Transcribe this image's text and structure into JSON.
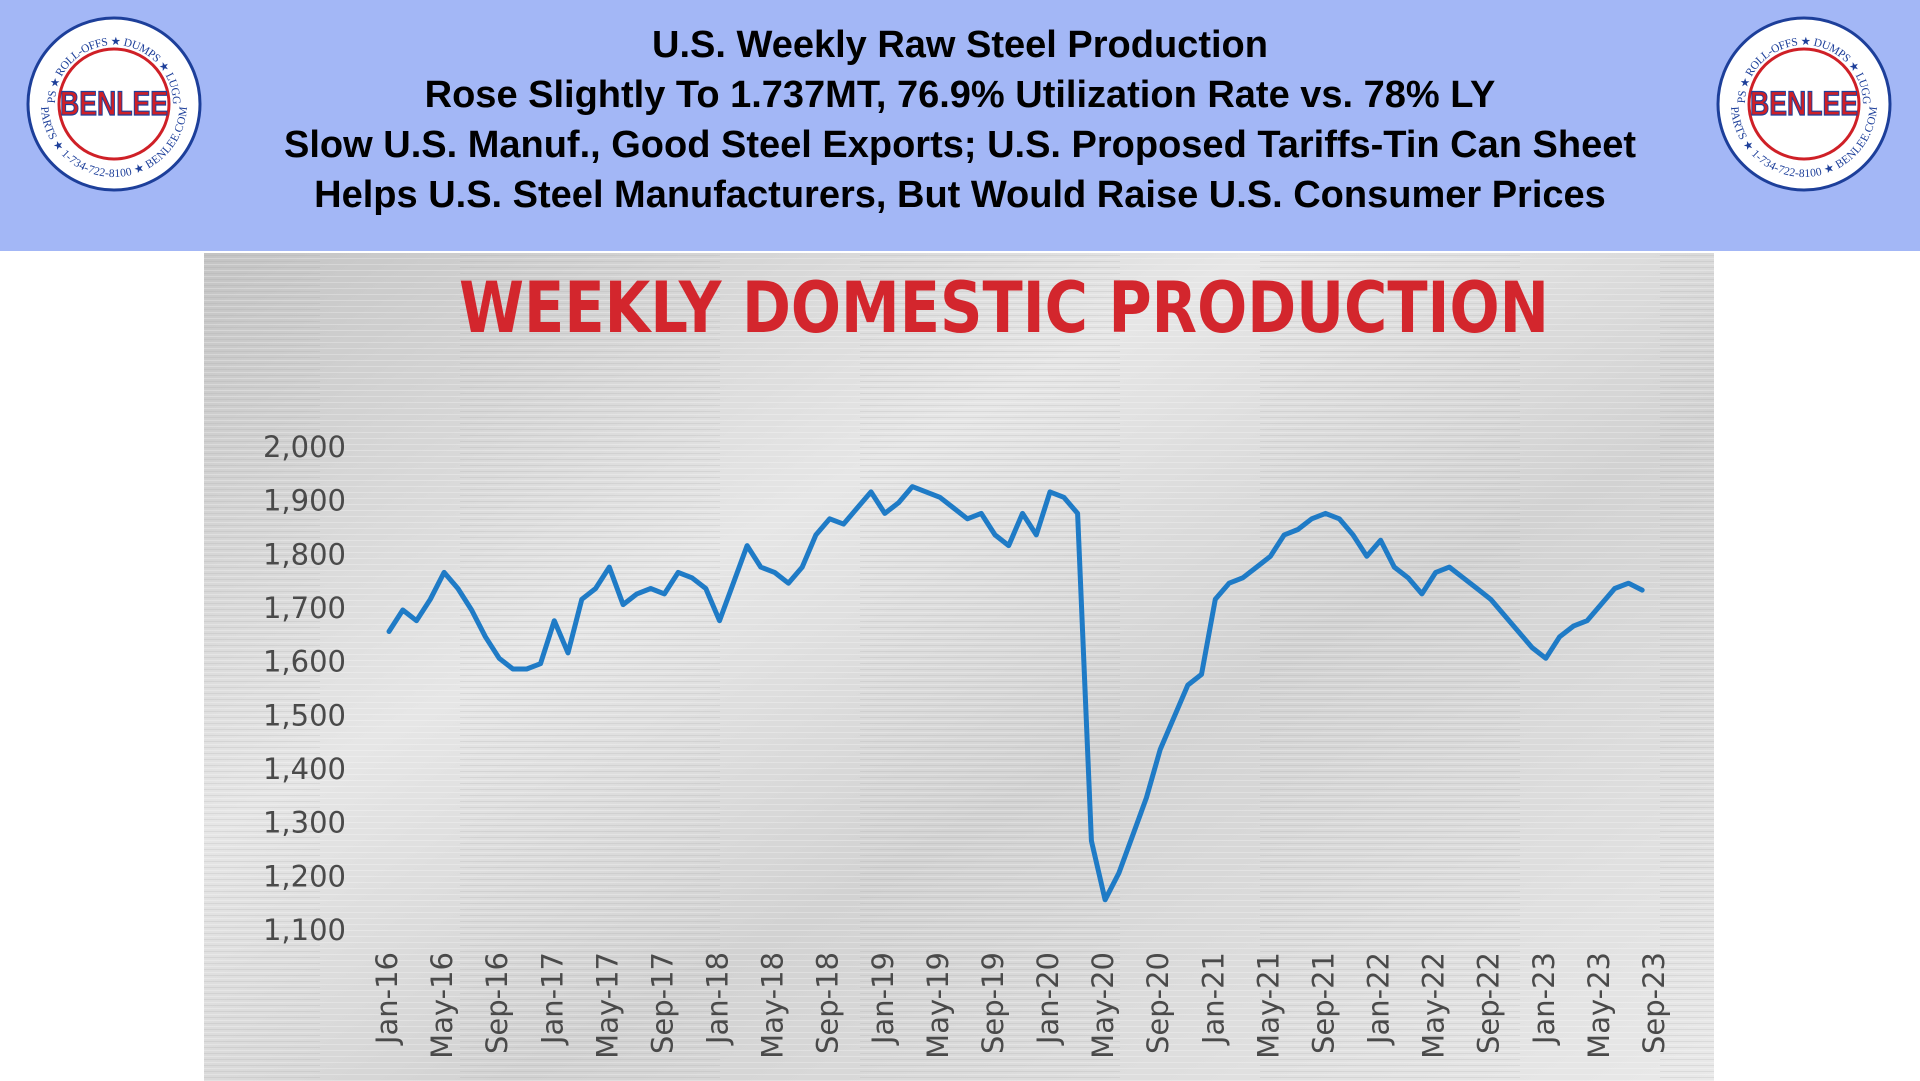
{
  "header": {
    "lines": [
      "U.S. Weekly Raw Steel Production",
      "Rose Slightly To 1.737MT, 76.9% Utilization Rate vs. 78% LY",
      "Slow U.S. Manuf., Good Steel Exports; U.S. Proposed Tariffs-Tin Can Sheet",
      "Helps U.S. Steel Manufacturers, But Would Raise U.S. Consumer Prices"
    ],
    "logo": {
      "name": "BENLEE",
      "ring_top": "TARPS ★ ROLL-OFFS ★ DUMPS ★ LUGGERS",
      "ring_bottom": "PARTS ★ 1-734-722-8100 ★ BENLEE.COM"
    }
  },
  "chart_data": {
    "type": "line",
    "title": "WEEKLY DOMESTIC PRODUCTION",
    "color": "#1f7bc6",
    "categories": [
      "Jan-16",
      null,
      null,
      null,
      "May-16",
      null,
      null,
      null,
      "Sep-16",
      null,
      null,
      null,
      "Jan-17",
      null,
      null,
      null,
      "May-17",
      null,
      null,
      null,
      "Sep-17",
      null,
      null,
      null,
      "Jan-18",
      null,
      null,
      null,
      "May-18",
      null,
      null,
      null,
      "Sep-18",
      null,
      null,
      null,
      "Jan-19",
      null,
      null,
      null,
      "May-19",
      null,
      null,
      null,
      "Sep-19",
      null,
      null,
      null,
      "Jan-20",
      null,
      null,
      null,
      "May-20",
      null,
      null,
      null,
      "Sep-20",
      null,
      null,
      null,
      "Jan-21",
      null,
      null,
      null,
      "May-21",
      null,
      null,
      null,
      "Sep-21",
      null,
      null,
      null,
      "Jan-22",
      null,
      null,
      null,
      "May-22",
      null,
      null,
      null,
      "Sep-22",
      null,
      null,
      null,
      "Jan-23",
      null,
      null,
      null,
      "May-23",
      null,
      null,
      null,
      "Sep-23"
    ],
    "values": [
      1660,
      1700,
      1680,
      1720,
      1770,
      1740,
      1700,
      1650,
      1610,
      1590,
      1590,
      1600,
      1680,
      1620,
      1720,
      1740,
      1780,
      1710,
      1730,
      1740,
      1730,
      1770,
      1760,
      1740,
      1680,
      1750,
      1820,
      1780,
      1770,
      1750,
      1780,
      1840,
      1870,
      1860,
      1890,
      1920,
      1880,
      1900,
      1930,
      1920,
      1910,
      1890,
      1870,
      1880,
      1840,
      1820,
      1880,
      1840,
      1920,
      1910,
      1880,
      1270,
      1160,
      1210,
      1280,
      1350,
      1440,
      1500,
      1560,
      1580,
      1720,
      1750,
      1760,
      1780,
      1800,
      1840,
      1850,
      1870,
      1880,
      1870,
      1840,
      1800,
      1830,
      1780,
      1760,
      1730,
      1770,
      1780,
      1760,
      1740,
      1720,
      1690,
      1660,
      1630,
      1610,
      1650,
      1670,
      1680,
      1710,
      1740,
      1750,
      1737,
      null
    ],
    "ylim": [
      1100,
      2000
    ],
    "yticks": [
      {
        "value": 1100,
        "label": "1,100"
      },
      {
        "value": 1200,
        "label": "1,200"
      },
      {
        "value": 1300,
        "label": "1,300"
      },
      {
        "value": 1400,
        "label": "1,400"
      },
      {
        "value": 1500,
        "label": "1,500"
      },
      {
        "value": 1600,
        "label": "1,600"
      },
      {
        "value": 1700,
        "label": "1,700"
      },
      {
        "value": 1800,
        "label": "1,800"
      },
      {
        "value": 1900,
        "label": "1,900"
      },
      {
        "value": 2000,
        "label": "2,000"
      }
    ]
  }
}
